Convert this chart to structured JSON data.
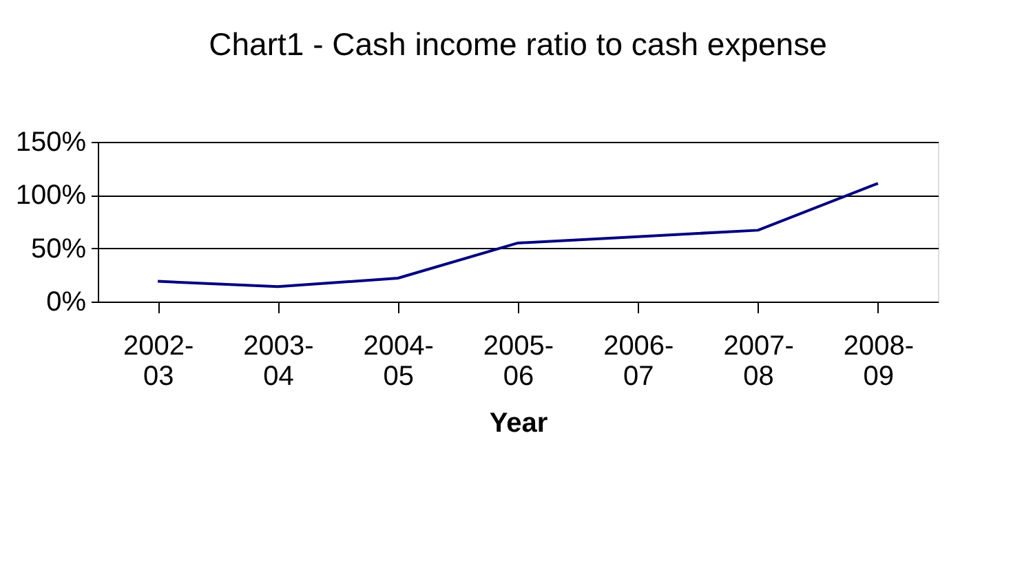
{
  "chart_data": {
    "type": "line",
    "title": "Chart1 - Cash income ratio to cash expense",
    "xlabel": "Year",
    "categories": [
      "2002-03",
      "2003-04",
      "2004-05",
      "2005-06",
      "2006-07",
      "2007-08",
      "2008-09"
    ],
    "series": [
      {
        "color": "#000080",
        "values": [
          0.19,
          0.14,
          0.22,
          0.55,
          0.61,
          0.67,
          1.11
        ]
      }
    ],
    "ylim": [
      0,
      1.5
    ],
    "yticks": [
      {
        "value": 0,
        "label": "0%"
      },
      {
        "value": 0.5,
        "label": "50%"
      },
      {
        "value": 1,
        "label": "100%"
      },
      {
        "value": 1.5,
        "label": "150%"
      }
    ],
    "grid": "y",
    "legend": false,
    "marker": "none",
    "line_style": "solid"
  }
}
